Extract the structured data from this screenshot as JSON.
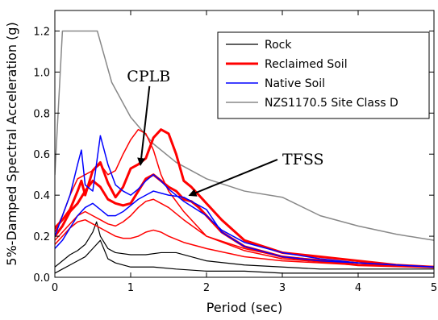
{
  "chart_data": {
    "type": "line",
    "title": "",
    "xlabel": "Period (sec)",
    "ylabel": "5%-Damped Spectral Acceleration (g)",
    "xlim": [
      0,
      5
    ],
    "ylim": [
      0,
      1.3
    ],
    "xticks": [
      0,
      1,
      2,
      3,
      4,
      5
    ],
    "yticks": [
      0.0,
      0.2,
      0.4,
      0.6,
      0.8,
      1.0,
      1.2
    ],
    "xtick_labels": [
      "0",
      "1",
      "2",
      "3",
      "4",
      "5"
    ],
    "ytick_labels": [
      "0.0",
      "0.2",
      "0.4",
      "0.6",
      "0.8",
      "1.0",
      "1.2"
    ],
    "grid": false,
    "legend": {
      "placement": "top-right",
      "entries": [
        {
          "label": "Rock",
          "color": "#000000",
          "width": 1.2
        },
        {
          "label": "Reclaimed Soil",
          "color": "#ff0000",
          "width": 3
        },
        {
          "label": "Native Soil",
          "color": "#0000ff",
          "width": 1.5
        },
        {
          "label": "NZS1170.5 Site Class D",
          "color": "#888888",
          "width": 1.5
        }
      ]
    },
    "series": [
      {
        "name": "NZS1170.5 Site Class D",
        "color": "#888888",
        "width": 1.5,
        "x": [
          0,
          0.1,
          0.56,
          0.75,
          1.0,
          1.3,
          1.6,
          2.0,
          2.5,
          3.0,
          3.5,
          4.0,
          4.5,
          5.0
        ],
        "y": [
          0.5,
          1.2,
          1.2,
          0.95,
          0.78,
          0.65,
          0.56,
          0.48,
          0.42,
          0.39,
          0.3,
          0.25,
          0.21,
          0.18
        ]
      },
      {
        "name": "Rock",
        "color": "#000000",
        "width": 1.2,
        "x": [
          0,
          0.1,
          0.2,
          0.3,
          0.4,
          0.5,
          0.55,
          0.6,
          0.7,
          0.8,
          1.0,
          1.2,
          1.4,
          1.6,
          1.8,
          2.0,
          2.5,
          3.0,
          3.5,
          4.0,
          5.0
        ],
        "y": [
          0.05,
          0.08,
          0.11,
          0.13,
          0.16,
          0.22,
          0.27,
          0.2,
          0.14,
          0.12,
          0.11,
          0.11,
          0.12,
          0.12,
          0.1,
          0.08,
          0.06,
          0.05,
          0.04,
          0.04,
          0.04
        ]
      },
      {
        "name": "Rock",
        "color": "#000000",
        "width": 1.2,
        "x": [
          0,
          0.1,
          0.2,
          0.3,
          0.4,
          0.5,
          0.6,
          0.7,
          0.8,
          1.0,
          1.3,
          1.6,
          2.0,
          2.5,
          3.0,
          4.0,
          5.0
        ],
        "y": [
          0.02,
          0.04,
          0.06,
          0.08,
          0.1,
          0.14,
          0.18,
          0.09,
          0.07,
          0.05,
          0.05,
          0.04,
          0.03,
          0.03,
          0.02,
          0.02,
          0.02
        ]
      },
      {
        "name": "Reclaimed Soil",
        "color": "#ff0000",
        "width": 3,
        "x": [
          0,
          0.1,
          0.2,
          0.3,
          0.35,
          0.4,
          0.5,
          0.6,
          0.7,
          0.8,
          0.9,
          1.0,
          1.1,
          1.2,
          1.3,
          1.4,
          1.5,
          1.6,
          1.7,
          1.8,
          2.0,
          2.2,
          2.5,
          3.0,
          3.5,
          4.0,
          4.5,
          5.0
        ],
        "y": [
          0.24,
          0.28,
          0.33,
          0.42,
          0.47,
          0.4,
          0.52,
          0.56,
          0.46,
          0.39,
          0.44,
          0.53,
          0.55,
          0.58,
          0.68,
          0.72,
          0.7,
          0.6,
          0.47,
          0.44,
          0.36,
          0.28,
          0.18,
          0.12,
          0.1,
          0.08,
          0.06,
          0.05
        ]
      },
      {
        "name": "Reclaimed Soil",
        "color": "#ff0000",
        "width": 3,
        "x": [
          0,
          0.1,
          0.2,
          0.3,
          0.4,
          0.5,
          0.6,
          0.7,
          0.8,
          0.9,
          1.0,
          1.1,
          1.2,
          1.3,
          1.4,
          1.5,
          1.6,
          1.7,
          1.8,
          1.9,
          2.0,
          2.2,
          2.5,
          3.0,
          3.5,
          4.0,
          5.0
        ],
        "y": [
          0.2,
          0.25,
          0.32,
          0.36,
          0.42,
          0.47,
          0.44,
          0.38,
          0.36,
          0.35,
          0.36,
          0.42,
          0.48,
          0.5,
          0.47,
          0.44,
          0.42,
          0.38,
          0.37,
          0.34,
          0.3,
          0.22,
          0.15,
          0.1,
          0.08,
          0.06,
          0.05
        ]
      },
      {
        "name": "Reclaimed Soil",
        "color": "#ff0000",
        "width": 1.5,
        "x": [
          0,
          0.1,
          0.2,
          0.3,
          0.4,
          0.5,
          0.6,
          0.7,
          0.8,
          0.9,
          1.0,
          1.1,
          1.2,
          1.3,
          1.4,
          1.5,
          1.7,
          2.0,
          2.5,
          3.0,
          4.0,
          5.0
        ],
        "y": [
          0.22,
          0.3,
          0.4,
          0.48,
          0.5,
          0.52,
          0.55,
          0.5,
          0.52,
          0.6,
          0.67,
          0.72,
          0.7,
          0.62,
          0.5,
          0.42,
          0.32,
          0.2,
          0.14,
          0.1,
          0.07,
          0.05
        ]
      },
      {
        "name": "Reclaimed Soil",
        "color": "#ff0000",
        "width": 1.5,
        "x": [
          0,
          0.1,
          0.2,
          0.3,
          0.4,
          0.5,
          0.6,
          0.7,
          0.8,
          0.9,
          1.0,
          1.1,
          1.2,
          1.3,
          1.4,
          1.5,
          1.7,
          2.0,
          2.5,
          3.0,
          4.0,
          5.0
        ],
        "y": [
          0.18,
          0.22,
          0.26,
          0.3,
          0.32,
          0.3,
          0.28,
          0.26,
          0.25,
          0.27,
          0.3,
          0.34,
          0.37,
          0.38,
          0.36,
          0.34,
          0.28,
          0.2,
          0.13,
          0.09,
          0.06,
          0.05
        ]
      },
      {
        "name": "Reclaimed Soil",
        "color": "#ff0000",
        "width": 1.5,
        "x": [
          0,
          0.1,
          0.2,
          0.3,
          0.4,
          0.5,
          0.6,
          0.7,
          0.8,
          0.9,
          1.0,
          1.1,
          1.2,
          1.3,
          1.4,
          1.5,
          1.7,
          2.0,
          2.5,
          3.0,
          4.0,
          5.0
        ],
        "y": [
          0.16,
          0.2,
          0.24,
          0.27,
          0.28,
          0.26,
          0.24,
          0.22,
          0.2,
          0.19,
          0.19,
          0.2,
          0.22,
          0.23,
          0.22,
          0.2,
          0.17,
          0.14,
          0.1,
          0.08,
          0.06,
          0.05
        ]
      },
      {
        "name": "Native Soil",
        "color": "#0000ff",
        "width": 1.5,
        "x": [
          0,
          0.1,
          0.2,
          0.3,
          0.35,
          0.4,
          0.5,
          0.6,
          0.7,
          0.8,
          0.9,
          1.0,
          1.1,
          1.2,
          1.3,
          1.4,
          1.5,
          1.7,
          2.0,
          2.2,
          2.5,
          3.0,
          3.5,
          4.0,
          5.0
        ],
        "y": [
          0.2,
          0.3,
          0.4,
          0.55,
          0.62,
          0.45,
          0.42,
          0.69,
          0.55,
          0.45,
          0.42,
          0.4,
          0.43,
          0.47,
          0.5,
          0.47,
          0.43,
          0.37,
          0.3,
          0.23,
          0.17,
          0.12,
          0.09,
          0.07,
          0.05
        ]
      },
      {
        "name": "Native Soil",
        "color": "#0000ff",
        "width": 1.5,
        "x": [
          0,
          0.1,
          0.2,
          0.3,
          0.4,
          0.5,
          0.6,
          0.7,
          0.8,
          0.9,
          1.0,
          1.1,
          1.2,
          1.3,
          1.4,
          1.5,
          1.7,
          2.0,
          2.2,
          2.5,
          3.0,
          3.5,
          4.0,
          5.0
        ],
        "y": [
          0.14,
          0.18,
          0.24,
          0.3,
          0.34,
          0.36,
          0.33,
          0.3,
          0.3,
          0.32,
          0.35,
          0.38,
          0.4,
          0.42,
          0.41,
          0.4,
          0.39,
          0.33,
          0.22,
          0.15,
          0.1,
          0.08,
          0.07,
          0.05
        ]
      }
    ],
    "annotations": [
      {
        "text": "CPLB",
        "x": 0.95,
        "y": 0.955,
        "arrow_to": [
          1.13,
          0.55
        ]
      },
      {
        "text": "TFSS",
        "x": 3.0,
        "y": 0.55,
        "arrow_to": [
          1.78,
          0.4
        ]
      }
    ]
  }
}
